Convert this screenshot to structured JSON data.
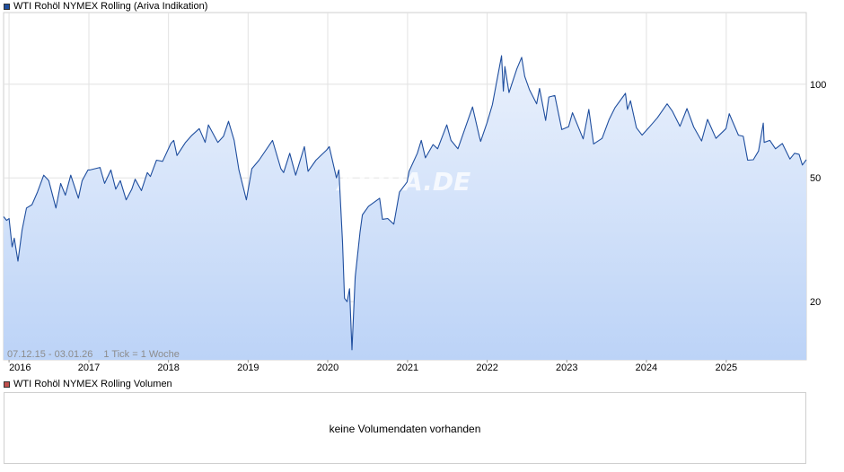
{
  "main_legend": {
    "label": "WTI Rohöl NYMEX Rolling (Ariva Indikation)",
    "color": "#1f4e9e"
  },
  "info": {
    "range": "07.12.15 - 03.01.26",
    "tick": "1 Tick = 1 Woche"
  },
  "watermark": "ARIVA.DE",
  "volume": {
    "label": "WTI Rohöl NYMEX Rolling Volumen",
    "message": "keine Volumendaten vorhanden",
    "color": "#c0504d"
  },
  "chart_data": {
    "type": "area",
    "scale": "log",
    "line_color": "#1f4e9e",
    "fill_top": "#eaf1fc",
    "fill_bottom": "#bcd3f7",
    "grid": true,
    "y_ticks": [
      {
        "value": 100,
        "label": "100"
      },
      {
        "value": 50,
        "label": "50"
      },
      {
        "value": 20,
        "label": "20"
      }
    ],
    "ylim": [
      13,
      170
    ],
    "xlim": [
      "2015-12-07",
      "2026-01-03"
    ],
    "x_ticks": [
      {
        "date": "2016-01-01",
        "label": "2016"
      },
      {
        "date": "2017-01-01",
        "label": "2017"
      },
      {
        "date": "2018-01-01",
        "label": "2018"
      },
      {
        "date": "2019-01-01",
        "label": "2019"
      },
      {
        "date": "2020-01-01",
        "label": "2020"
      },
      {
        "date": "2021-01-01",
        "label": "2021"
      },
      {
        "date": "2022-01-01",
        "label": "2022"
      },
      {
        "date": "2023-01-01",
        "label": "2023"
      },
      {
        "date": "2024-01-01",
        "label": "2024"
      },
      {
        "date": "2025-01-01",
        "label": "2025"
      }
    ],
    "series": [
      {
        "points": [
          [
            "2015-12-07",
            37.5
          ],
          [
            "2015-12-21",
            36.5
          ],
          [
            "2016-01-01",
            37
          ],
          [
            "2016-01-15",
            30
          ],
          [
            "2016-01-25",
            32
          ],
          [
            "2016-02-11",
            27
          ],
          [
            "2016-03-01",
            34
          ],
          [
            "2016-03-21",
            40
          ],
          [
            "2016-04-15",
            41
          ],
          [
            "2016-05-10",
            45
          ],
          [
            "2016-06-08",
            51
          ],
          [
            "2016-07-01",
            49
          ],
          [
            "2016-08-03",
            40
          ],
          [
            "2016-08-25",
            48
          ],
          [
            "2016-09-15",
            44
          ],
          [
            "2016-10-10",
            51
          ],
          [
            "2016-11-14",
            43
          ],
          [
            "2016-12-01",
            49
          ],
          [
            "2016-12-28",
            53
          ],
          [
            "2017-01-06",
            53
          ],
          [
            "2017-02-21",
            54
          ],
          [
            "2017-03-14",
            48
          ],
          [
            "2017-04-12",
            53
          ],
          [
            "2017-05-04",
            46
          ],
          [
            "2017-05-25",
            49
          ],
          [
            "2017-06-21",
            42.5
          ],
          [
            "2017-07-17",
            46
          ],
          [
            "2017-08-01",
            49.5
          ],
          [
            "2017-08-30",
            45.5
          ],
          [
            "2017-09-26",
            52
          ],
          [
            "2017-10-10",
            50.5
          ],
          [
            "2017-11-07",
            57
          ],
          [
            "2017-12-05",
            56.5
          ],
          [
            "2018-01-12",
            64.5
          ],
          [
            "2018-01-25",
            66
          ],
          [
            "2018-02-09",
            59
          ],
          [
            "2018-03-20",
            65
          ],
          [
            "2018-04-18",
            68.5
          ],
          [
            "2018-05-22",
            72
          ],
          [
            "2018-06-18",
            65
          ],
          [
            "2018-07-03",
            74
          ],
          [
            "2018-08-15",
            65
          ],
          [
            "2018-09-10",
            68
          ],
          [
            "2018-10-03",
            76
          ],
          [
            "2018-10-29",
            66
          ],
          [
            "2018-11-20",
            53
          ],
          [
            "2018-12-24",
            42.5
          ],
          [
            "2019-01-18",
            53.5
          ],
          [
            "2019-02-20",
            57
          ],
          [
            "2019-04-23",
            66
          ],
          [
            "2019-05-31",
            53.5
          ],
          [
            "2019-06-13",
            52
          ],
          [
            "2019-07-11",
            60
          ],
          [
            "2019-08-07",
            51
          ],
          [
            "2019-09-16",
            63
          ],
          [
            "2019-10-03",
            52.5
          ],
          [
            "2019-11-08",
            57
          ],
          [
            "2019-12-27",
            61.5
          ],
          [
            "2020-01-08",
            63
          ],
          [
            "2020-02-10",
            50
          ],
          [
            "2020-02-21",
            53
          ],
          [
            "2020-03-09",
            31
          ],
          [
            "2020-03-18",
            20.5
          ],
          [
            "2020-03-30",
            20
          ],
          [
            "2020-04-10",
            22
          ],
          [
            "2020-04-21",
            14
          ],
          [
            "2020-05-06",
            24
          ],
          [
            "2020-05-28",
            33.5
          ],
          [
            "2020-06-08",
            38
          ],
          [
            "2020-07-06",
            40.5
          ],
          [
            "2020-08-26",
            43
          ],
          [
            "2020-09-08",
            36.8
          ],
          [
            "2020-10-02",
            37
          ],
          [
            "2020-10-30",
            35.5
          ],
          [
            "2020-11-25",
            45
          ],
          [
            "2020-12-30",
            48.5
          ],
          [
            "2021-01-08",
            52.5
          ],
          [
            "2021-02-15",
            60
          ],
          [
            "2021-03-05",
            66
          ],
          [
            "2021-03-24",
            58
          ],
          [
            "2021-04-28",
            64
          ],
          [
            "2021-05-19",
            62
          ],
          [
            "2021-06-30",
            74
          ],
          [
            "2021-07-19",
            66
          ],
          [
            "2021-08-20",
            62
          ],
          [
            "2021-09-30",
            75
          ],
          [
            "2021-10-26",
            84.5
          ],
          [
            "2021-11-26",
            68
          ],
          [
            "2021-12-02",
            65.5
          ],
          [
            "2021-12-31",
            75
          ],
          [
            "2022-01-25",
            86
          ],
          [
            "2022-03-08",
            123.5
          ],
          [
            "2022-03-16",
            95
          ],
          [
            "2022-03-23",
            114
          ],
          [
            "2022-04-11",
            94
          ],
          [
            "2022-05-17",
            112
          ],
          [
            "2022-06-08",
            122
          ],
          [
            "2022-06-22",
            106
          ],
          [
            "2022-07-14",
            96
          ],
          [
            "2022-08-16",
            86.5
          ],
          [
            "2022-08-29",
            97
          ],
          [
            "2022-09-26",
            76.5
          ],
          [
            "2022-10-11",
            91
          ],
          [
            "2022-11-07",
            92
          ],
          [
            "2022-12-09",
            71.5
          ],
          [
            "2023-01-09",
            73
          ],
          [
            "2023-01-27",
            81
          ],
          [
            "2023-03-17",
            66.7
          ],
          [
            "2023-04-12",
            83
          ],
          [
            "2023-05-04",
            64.3
          ],
          [
            "2023-06-12",
            67
          ],
          [
            "2023-07-14",
            77
          ],
          [
            "2023-08-10",
            84
          ],
          [
            "2023-09-27",
            93.5
          ],
          [
            "2023-10-06",
            83
          ],
          [
            "2023-10-20",
            88.5
          ],
          [
            "2023-11-16",
            72.5
          ],
          [
            "2023-12-12",
            68.6
          ],
          [
            "2024-01-12",
            72.5
          ],
          [
            "2024-02-20",
            78
          ],
          [
            "2024-04-05",
            86.5
          ],
          [
            "2024-04-29",
            82
          ],
          [
            "2024-06-03",
            73.2
          ],
          [
            "2024-07-05",
            83.5
          ],
          [
            "2024-08-05",
            72.9
          ],
          [
            "2024-09-10",
            65.7
          ],
          [
            "2024-10-07",
            77.1
          ],
          [
            "2024-11-15",
            67
          ],
          [
            "2024-12-31",
            72
          ],
          [
            "2025-01-15",
            80.4
          ],
          [
            "2025-02-26",
            68.6
          ],
          [
            "2025-03-20",
            68
          ],
          [
            "2025-04-09",
            57
          ],
          [
            "2025-05-05",
            57.2
          ],
          [
            "2025-05-29",
            61
          ],
          [
            "2025-06-20",
            75
          ],
          [
            "2025-06-24",
            65
          ],
          [
            "2025-07-20",
            66
          ],
          [
            "2025-08-15",
            62
          ],
          [
            "2025-09-15",
            64.5
          ],
          [
            "2025-10-20",
            57.5
          ],
          [
            "2025-11-10",
            60
          ],
          [
            "2025-12-01",
            59.5
          ],
          [
            "2025-12-16",
            55
          ],
          [
            "2026-01-03",
            57.2
          ]
        ]
      }
    ]
  }
}
